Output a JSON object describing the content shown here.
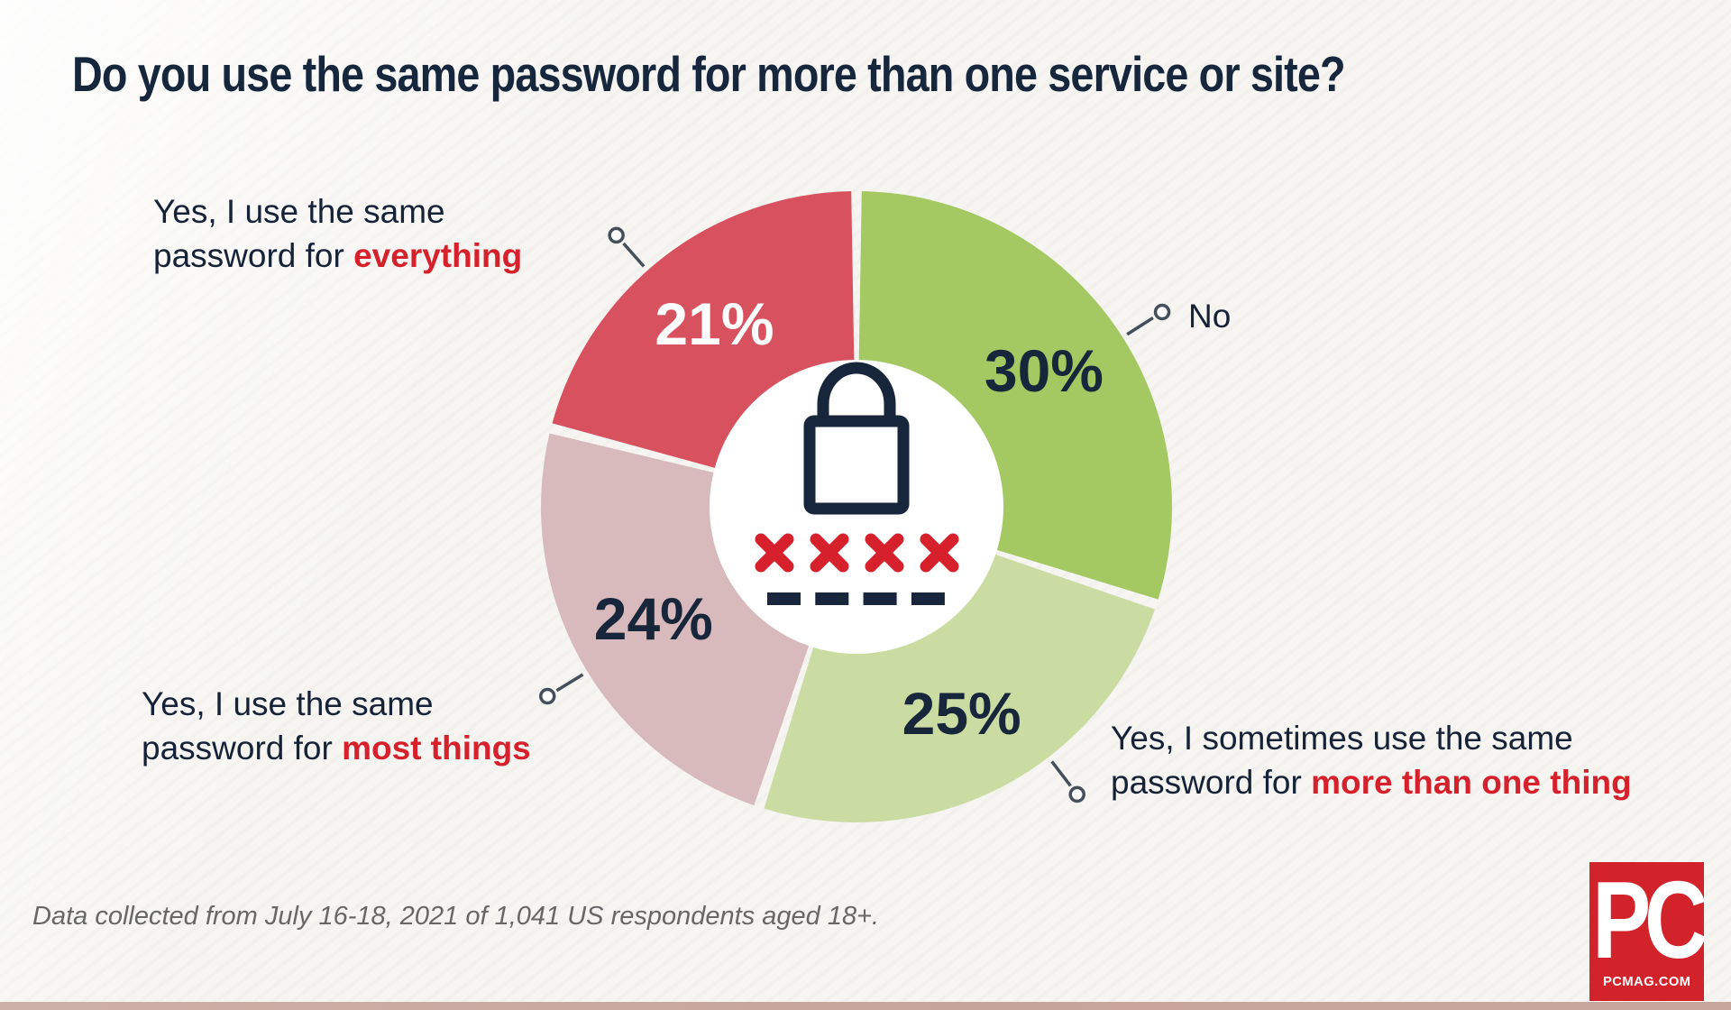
{
  "title": "Do you use the same password for more than one service or site?",
  "chart_data": {
    "type": "pie",
    "subtype": "donut",
    "title": "Do you use the same password for more than one service or site?",
    "legend_position": "callout-labels-around-chart",
    "start_angle_deg": 0,
    "direction": "clockwise",
    "center_icon": "padlock-password-icon",
    "segments": [
      {
        "id": "no",
        "label": "No",
        "value": 30,
        "color": "#a4c862",
        "value_label": "30%",
        "value_label_color": "#17263a"
      },
      {
        "id": "sometimes",
        "label": "Yes, I sometimes use the same password for more than one thing",
        "value": 25,
        "color": "#cbdca3",
        "value_label": "25%",
        "value_label_color": "#17263a"
      },
      {
        "id": "most",
        "label": "Yes, I use the same password for most things",
        "value": 24,
        "color": "#d8b9bc",
        "value_label": "24%",
        "value_label_color": "#17263a"
      },
      {
        "id": "everything",
        "label": "Yes, I use the same password for everything",
        "value": 21,
        "color": "#d8515f",
        "value_label": "21%",
        "value_label_color": "#ffffff"
      }
    ]
  },
  "callout_labels": {
    "everything": {
      "line1": "Yes, I use the same",
      "line2_prefix": "password for ",
      "emphasis": "everything"
    },
    "no": {
      "text": "No"
    },
    "most": {
      "line1": "Yes, I use the same",
      "line2_prefix": "password for ",
      "emphasis": "most things"
    },
    "sometimes": {
      "line1": "Yes, I sometimes use the same",
      "line2_prefix": "password for ",
      "emphasis": "more than one thing"
    }
  },
  "footnote": "Data collected from July 16-18, 2021 of 1,041 US respondents aged 18+.",
  "logo": {
    "main": "PC",
    "site": "PCMAG.COM"
  },
  "colors": {
    "accent_red_text": "#d6202b",
    "navy_text": "#17263a",
    "logo_red": "#d2232a",
    "background": "#f6f5f2",
    "donut_hole": "#ffffff"
  }
}
